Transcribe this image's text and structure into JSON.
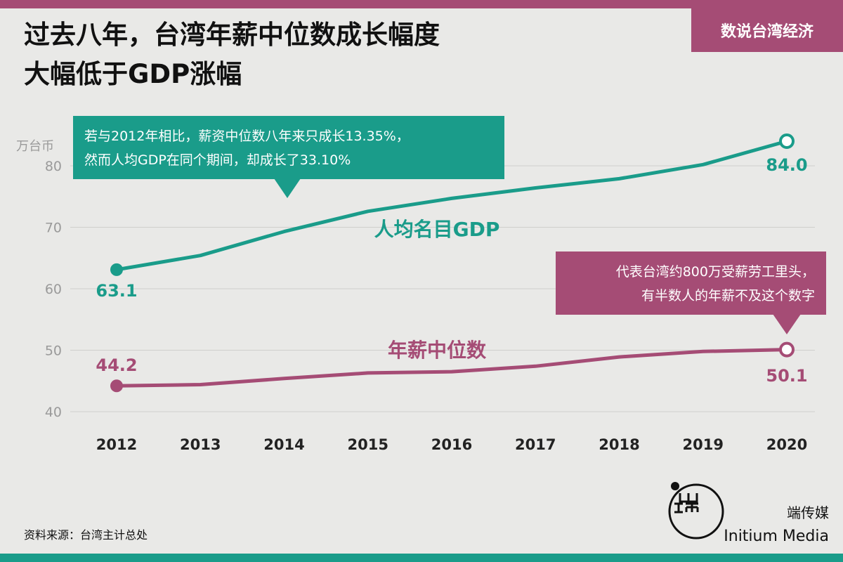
{
  "header": {
    "title_line1": "过去八年，台湾年薪中位数成长幅度",
    "title_line2": "大幅低于GDP涨幅",
    "series_badge": "数说台湾经济"
  },
  "colors": {
    "gdp": "#1a9c8a",
    "median": "#a54c75",
    "background": "#e9e9e7",
    "axis_label": "#9a9a9a"
  },
  "chart_data": {
    "type": "line",
    "x": [
      2012,
      2013,
      2014,
      2015,
      2016,
      2017,
      2018,
      2019,
      2020
    ],
    "ylim": [
      40,
      84
    ],
    "yticks": [
      40,
      50,
      60,
      70,
      80
    ],
    "ylabel": "万台币",
    "xlabel": "",
    "grid": true,
    "series": [
      {
        "name": "人均名目GDP",
        "values": [
          63.1,
          65.4,
          69.3,
          72.6,
          74.7,
          76.4,
          77.9,
          80.2,
          84.0
        ],
        "start_label": "63.1",
        "end_label": "84.0",
        "color": "#1a9c8a"
      },
      {
        "name": "年薪中位数",
        "values": [
          44.2,
          44.4,
          45.4,
          46.3,
          46.5,
          47.4,
          48.9,
          49.8,
          50.1
        ],
        "start_label": "44.2",
        "end_label": "50.1",
        "color": "#a54c75"
      }
    ],
    "annotations": [
      {
        "lines": [
          "若与2012年相比，薪资中位数八年来只成长13.35%，",
          "然而人均GDP在同个期间，却成长了33.10%"
        ],
        "color": "#1a9c8a"
      },
      {
        "lines": [
          "代表台湾约800万受薪劳工里头，",
          "有半数人的年薪不及这个数字"
        ],
        "color": "#a54c75"
      }
    ]
  },
  "footer": {
    "source": "资料来源：台湾主计总处",
    "brand_cn": "端传媒",
    "brand_en": "Initium Media"
  }
}
